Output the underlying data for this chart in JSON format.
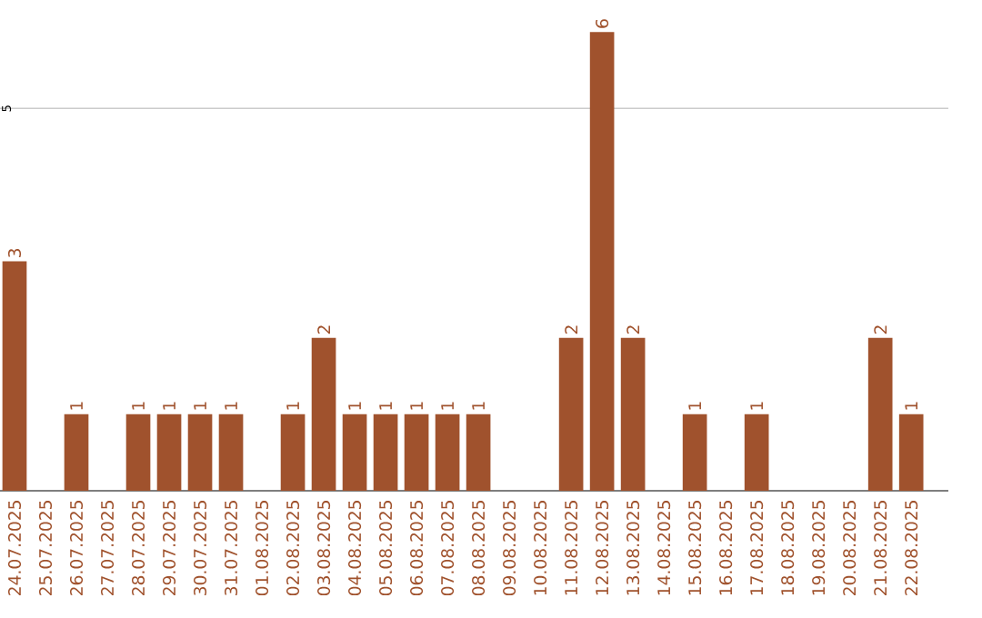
{
  "chart_data": {
    "type": "bar",
    "categories": [
      "24.07.2025",
      "25.07.2025",
      "26.07.2025",
      "27.07.2025",
      "28.07.2025",
      "29.07.2025",
      "30.07.2025",
      "31.07.2025",
      "01.08.2025",
      "02.08.2025",
      "03.08.2025",
      "04.08.2025",
      "05.08.2025",
      "06.08.2025",
      "07.08.2025",
      "08.08.2025",
      "09.08.2025",
      "10.08.2025",
      "11.08.2025",
      "12.08.2025",
      "13.08.2025",
      "14.08.2025",
      "15.08.2025",
      "16.08.2025",
      "17.08.2025",
      "18.08.2025",
      "19.08.2025",
      "20.08.2025",
      "21.08.2025",
      "22.08.2025"
    ],
    "values": [
      3,
      0,
      1,
      0,
      1,
      1,
      1,
      1,
      0,
      1,
      2,
      1,
      1,
      1,
      1,
      1,
      0,
      0,
      2,
      6,
      2,
      0,
      1,
      0,
      1,
      0,
      0,
      0,
      2,
      1
    ],
    "value_labels": [
      "3",
      null,
      "1",
      null,
      "1",
      "1",
      "1",
      "1",
      null,
      "1",
      "2",
      "1",
      "1",
      "1",
      "1",
      "1",
      null,
      null,
      "2",
      "6",
      "2",
      null,
      "1",
      null,
      "1",
      null,
      null,
      null,
      "2",
      "1"
    ],
    "color": "#a0522d",
    "ref_lines": [
      {
        "axis": "y",
        "value": 5,
        "label": "5",
        "color": "#cccccc"
      }
    ]
  }
}
